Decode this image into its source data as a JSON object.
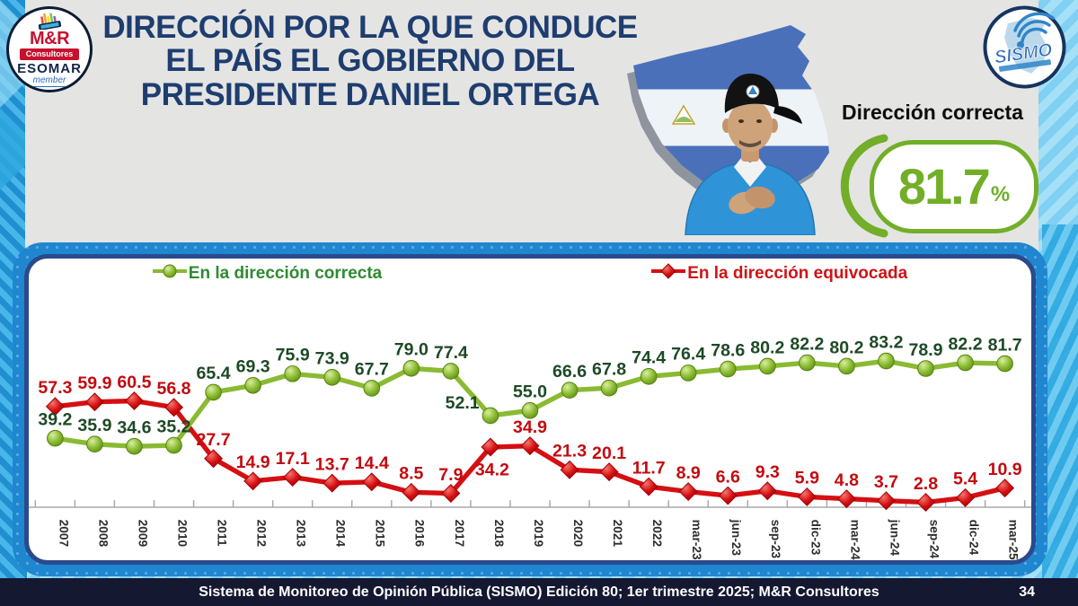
{
  "header": {
    "title": "DIRECCIÓN POR LA QUE CONDUCE EL PAÍS EL GOBIERNO DEL PRESIDENTE DANIEL ORTEGA"
  },
  "logos": {
    "mr": {
      "name": "M&R",
      "banner": "Consultores",
      "esomar": "ESOMAR",
      "member": "member"
    },
    "sismo": {
      "name": "SISMO"
    }
  },
  "highlight": {
    "label": "Dirección correcta",
    "value": "81.7",
    "unit": "%",
    "accent": "#72ae28"
  },
  "chart_data": {
    "type": "line",
    "title": "Dirección por la que conduce el país el gobierno del presidente Daniel Ortega",
    "xlabel": "",
    "ylabel": "",
    "ylim": [
      0,
      100
    ],
    "grid": false,
    "legend_position": "top",
    "categories": [
      "2007",
      "2008",
      "2009",
      "2010",
      "2011",
      "2012",
      "2013",
      "2014",
      "2015",
      "2016",
      "2017",
      "2018",
      "2019",
      "2020",
      "2021",
      "2022",
      "mar-23",
      "jun-23",
      "sep-23",
      "dic-23",
      "mar-24",
      "jun-24",
      "sep-24",
      "dic-24",
      "mar-25"
    ],
    "series": [
      {
        "name": "En la dirección correcta",
        "marker": "circle",
        "color": "#8aba32",
        "label_color": "#1d4a26",
        "legend_color": "#2e8b31",
        "values": [
          39.2,
          35.9,
          34.6,
          35.2,
          65.4,
          69.3,
          75.9,
          73.9,
          67.7,
          79.0,
          77.4,
          52.1,
          55.0,
          66.6,
          67.8,
          74.4,
          76.4,
          78.6,
          80.2,
          82.2,
          80.2,
          83.2,
          78.9,
          82.2,
          81.7
        ]
      },
      {
        "name": "En la dirección equivocada",
        "marker": "diamond",
        "color": "#d50f12",
        "label_color": "#c30b10",
        "legend_color": "#cf1317",
        "values": [
          57.3,
          59.9,
          60.5,
          56.8,
          27.7,
          14.9,
          17.1,
          13.7,
          14.4,
          8.5,
          7.9,
          34.2,
          34.9,
          21.3,
          20.1,
          11.7,
          8.9,
          6.6,
          9.3,
          5.9,
          4.8,
          3.7,
          2.8,
          5.4,
          10.9
        ]
      }
    ]
  },
  "footer": {
    "text": "Sistema de Monitoreo de Opinión Pública (SISMO) Edición 80; 1er trimestre 2025; M&R Consultores",
    "page": "34"
  }
}
